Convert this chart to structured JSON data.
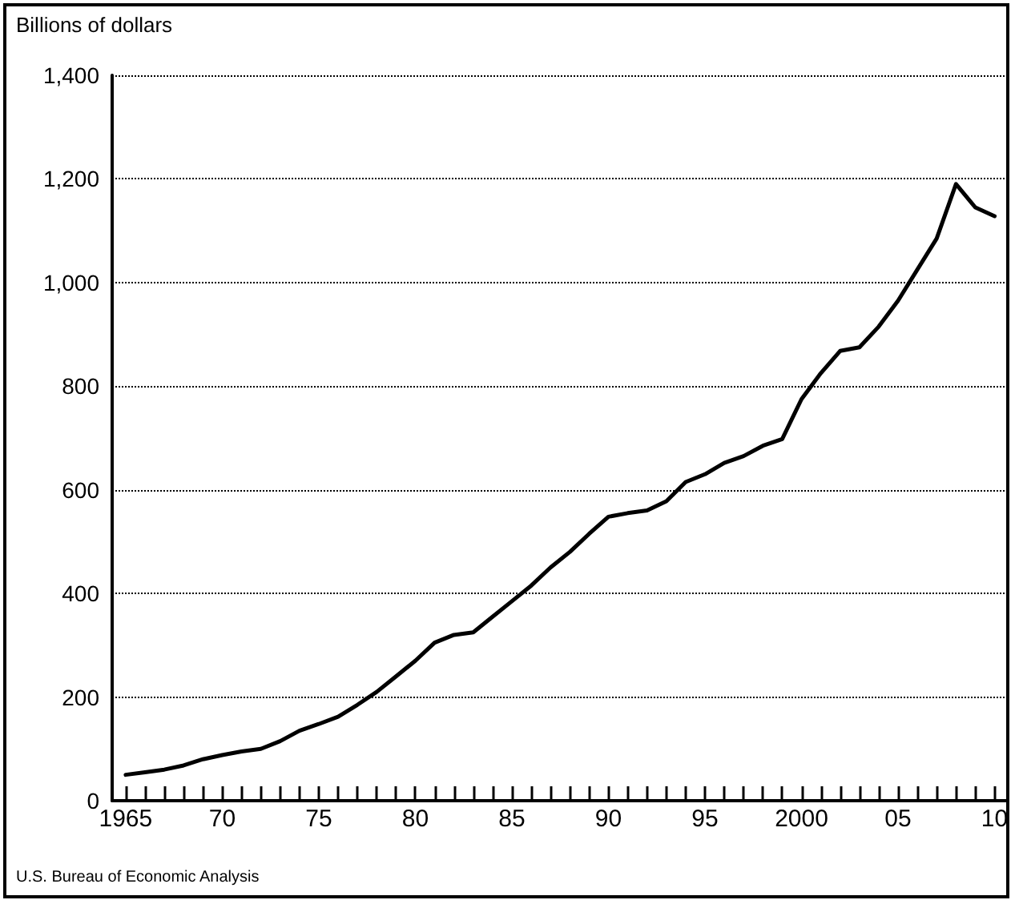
{
  "chart_data": {
    "type": "line",
    "ylabel": "Billions of dollars",
    "annotations": [
      "U.S. Bureau of Economic Analysis"
    ],
    "x": [
      1965,
      1966,
      1967,
      1968,
      1969,
      1970,
      1971,
      1972,
      1973,
      1974,
      1975,
      1976,
      1977,
      1978,
      1979,
      1980,
      1981,
      1982,
      1983,
      1984,
      1985,
      1986,
      1987,
      1988,
      1989,
      1990,
      1991,
      1992,
      1993,
      1994,
      1995,
      1996,
      1997,
      1998,
      1999,
      2000,
      2001,
      2002,
      2003,
      2004,
      2005,
      2006,
      2007,
      2008,
      2009,
      2010
    ],
    "series": [
      {
        "color": "#000000",
        "values": [
          50,
          55,
          60,
          68,
          80,
          88,
          95,
          100,
          115,
          135,
          148,
          162,
          185,
          210,
          240,
          270,
          305,
          320,
          325,
          355,
          385,
          415,
          450,
          480,
          515,
          548,
          555,
          560,
          578,
          615,
          630,
          652,
          665,
          685,
          698,
          775,
          825,
          868,
          875,
          915,
          965,
          1025,
          1085,
          1190,
          1145,
          1128
        ]
      }
    ],
    "xlim": [
      1964.3,
      2010.6
    ],
    "xticks": [
      {
        "value": 1965,
        "label": "1965"
      },
      {
        "value": 1966,
        "label": null
      },
      {
        "value": 1967,
        "label": null
      },
      {
        "value": 1968,
        "label": null
      },
      {
        "value": 1969,
        "label": null
      },
      {
        "value": 1970,
        "label": "70"
      },
      {
        "value": 1971,
        "label": null
      },
      {
        "value": 1972,
        "label": null
      },
      {
        "value": 1973,
        "label": null
      },
      {
        "value": 1974,
        "label": null
      },
      {
        "value": 1975,
        "label": "75"
      },
      {
        "value": 1976,
        "label": null
      },
      {
        "value": 1977,
        "label": null
      },
      {
        "value": 1978,
        "label": null
      },
      {
        "value": 1979,
        "label": null
      },
      {
        "value": 1980,
        "label": "80"
      },
      {
        "value": 1981,
        "label": null
      },
      {
        "value": 1982,
        "label": null
      },
      {
        "value": 1983,
        "label": null
      },
      {
        "value": 1984,
        "label": null
      },
      {
        "value": 1985,
        "label": "85"
      },
      {
        "value": 1986,
        "label": null
      },
      {
        "value": 1987,
        "label": null
      },
      {
        "value": 1988,
        "label": null
      },
      {
        "value": 1989,
        "label": null
      },
      {
        "value": 1990,
        "label": "90"
      },
      {
        "value": 1991,
        "label": null
      },
      {
        "value": 1992,
        "label": null
      },
      {
        "value": 1993,
        "label": null
      },
      {
        "value": 1994,
        "label": null
      },
      {
        "value": 1995,
        "label": "95"
      },
      {
        "value": 1996,
        "label": null
      },
      {
        "value": 1997,
        "label": null
      },
      {
        "value": 1998,
        "label": null
      },
      {
        "value": 1999,
        "label": null
      },
      {
        "value": 2000,
        "label": "2000"
      },
      {
        "value": 2001,
        "label": null
      },
      {
        "value": 2002,
        "label": null
      },
      {
        "value": 2003,
        "label": null
      },
      {
        "value": 2004,
        "label": null
      },
      {
        "value": 2005,
        "label": "05"
      },
      {
        "value": 2006,
        "label": null
      },
      {
        "value": 2007,
        "label": null
      },
      {
        "value": 2008,
        "label": null
      },
      {
        "value": 2009,
        "label": null
      },
      {
        "value": 2010,
        "label": "10"
      }
    ],
    "ylim": [
      0,
      1400
    ],
    "yticks": [
      {
        "value": 0,
        "label": "0"
      },
      {
        "value": 200,
        "label": "200"
      },
      {
        "value": 400,
        "label": "400"
      },
      {
        "value": 600,
        "label": "600"
      },
      {
        "value": 800,
        "label": "800"
      },
      {
        "value": 1000,
        "label": "1,000"
      },
      {
        "value": 1200,
        "label": "1,200"
      },
      {
        "value": 1400,
        "label": "1,400"
      }
    ],
    "grid": "y",
    "marker": "none",
    "line_style": "solid"
  }
}
